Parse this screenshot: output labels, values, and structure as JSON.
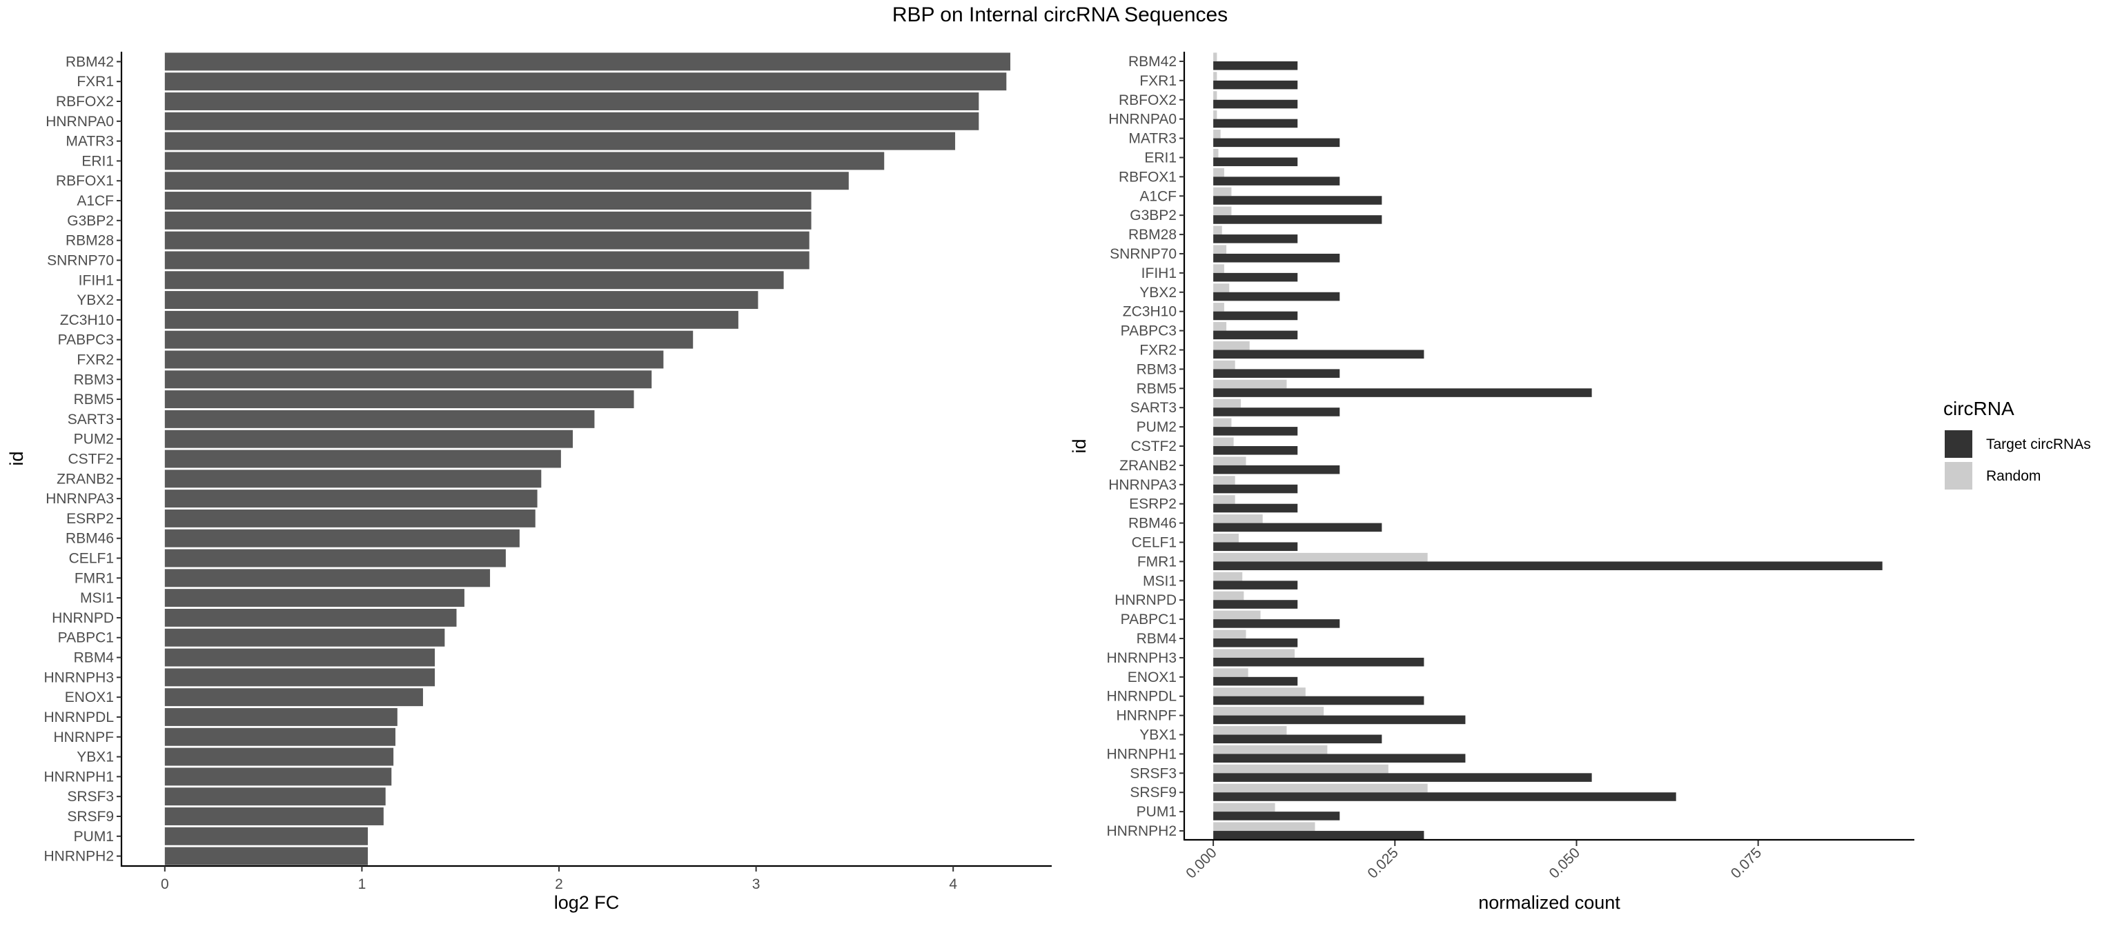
{
  "title": "RBP on Internal circRNA Sequences",
  "chart_data": [
    {
      "type": "bar",
      "orientation": "horizontal",
      "xlabel": "log2 FC",
      "ylabel": "id",
      "xlim": [
        -0.22,
        4.5
      ],
      "xticks": [
        0,
        1,
        2,
        3,
        4
      ],
      "grid": false,
      "bar_color": "#595959",
      "categories": [
        "RBM42",
        "FXR1",
        "RBFOX2",
        "HNRNPA0",
        "MATR3",
        "ERI1",
        "RBFOX1",
        "A1CF",
        "G3BP2",
        "RBM28",
        "SNRNP70",
        "IFIH1",
        "YBX2",
        "ZC3H10",
        "PABPC3",
        "FXR2",
        "RBM3",
        "RBM5",
        "SART3",
        "PUM2",
        "CSTF2",
        "ZRANB2",
        "HNRNPA3",
        "ESRP2",
        "RBM46",
        "CELF1",
        "FMR1",
        "MSI1",
        "HNRNPD",
        "PABPC1",
        "RBM4",
        "HNRNPH3",
        "ENOX1",
        "HNRNPDL",
        "HNRNPF",
        "YBX1",
        "HNRNPH1",
        "SRSF3",
        "SRSF9",
        "PUM1",
        "HNRNPH2"
      ],
      "values": [
        4.29,
        4.27,
        4.13,
        4.13,
        4.01,
        3.65,
        3.47,
        3.28,
        3.28,
        3.27,
        3.27,
        3.14,
        3.01,
        2.91,
        2.68,
        2.53,
        2.47,
        2.38,
        2.18,
        2.07,
        2.01,
        1.91,
        1.89,
        1.88,
        1.8,
        1.73,
        1.65,
        1.52,
        1.48,
        1.42,
        1.37,
        1.37,
        1.31,
        1.18,
        1.17,
        1.16,
        1.15,
        1.12,
        1.11,
        1.03,
        1.03
      ]
    },
    {
      "type": "bar",
      "orientation": "horizontal",
      "grouped": true,
      "xlabel": "normalized count",
      "ylabel": "id",
      "xlim": [
        -0.004,
        0.0965
      ],
      "xticks": [
        0.0,
        0.025,
        0.05,
        0.075
      ],
      "xtick_labels": [
        "0.000",
        "0.025",
        "0.050",
        "0.075"
      ],
      "grid": false,
      "legend_title": "circRNA",
      "legend_position": "right",
      "categories": [
        "RBM42",
        "FXR1",
        "RBFOX2",
        "HNRNPA0",
        "MATR3",
        "ERI1",
        "RBFOX1",
        "A1CF",
        "G3BP2",
        "RBM28",
        "SNRNP70",
        "IFIH1",
        "YBX2",
        "ZC3H10",
        "PABPC3",
        "FXR2",
        "RBM3",
        "RBM5",
        "SART3",
        "PUM2",
        "CSTF2",
        "ZRANB2",
        "HNRNPA3",
        "ESRP2",
        "RBM46",
        "CELF1",
        "FMR1",
        "MSI1",
        "HNRNPD",
        "PABPC1",
        "RBM4",
        "HNRNPH3",
        "ENOX1",
        "HNRNPDL",
        "HNRNPF",
        "YBX1",
        "HNRNPH1",
        "SRSF3",
        "SRSF9",
        "PUM1",
        "HNRNPH2"
      ],
      "series": [
        {
          "name": "Target circRNAs",
          "color": "#333333",
          "values": [
            0.0116,
            0.0116,
            0.0116,
            0.0116,
            0.0174,
            0.0116,
            0.0174,
            0.0232,
            0.0232,
            0.0116,
            0.0174,
            0.0116,
            0.0174,
            0.0116,
            0.0116,
            0.029,
            0.0174,
            0.0521,
            0.0174,
            0.0116,
            0.0116,
            0.0174,
            0.0116,
            0.0116,
            0.0232,
            0.0116,
            0.0921,
            0.0116,
            0.0116,
            0.0174,
            0.0116,
            0.029,
            0.0116,
            0.029,
            0.0347,
            0.0232,
            0.0347,
            0.0521,
            0.0637,
            0.0174,
            0.029
          ]
        },
        {
          "name": "Random",
          "color": "#cccccc",
          "values": [
            0.0005,
            0.0005,
            0.0005,
            0.0005,
            0.001,
            0.0007,
            0.0015,
            0.0025,
            0.0025,
            0.0012,
            0.0018,
            0.0015,
            0.0022,
            0.0015,
            0.0018,
            0.005,
            0.003,
            0.0101,
            0.0038,
            0.0025,
            0.0028,
            0.0045,
            0.003,
            0.003,
            0.0068,
            0.0035,
            0.0295,
            0.004,
            0.0042,
            0.0065,
            0.0045,
            0.0112,
            0.0048,
            0.0127,
            0.0152,
            0.0101,
            0.0157,
            0.0241,
            0.0295,
            0.0085,
            0.014
          ]
        }
      ]
    }
  ]
}
